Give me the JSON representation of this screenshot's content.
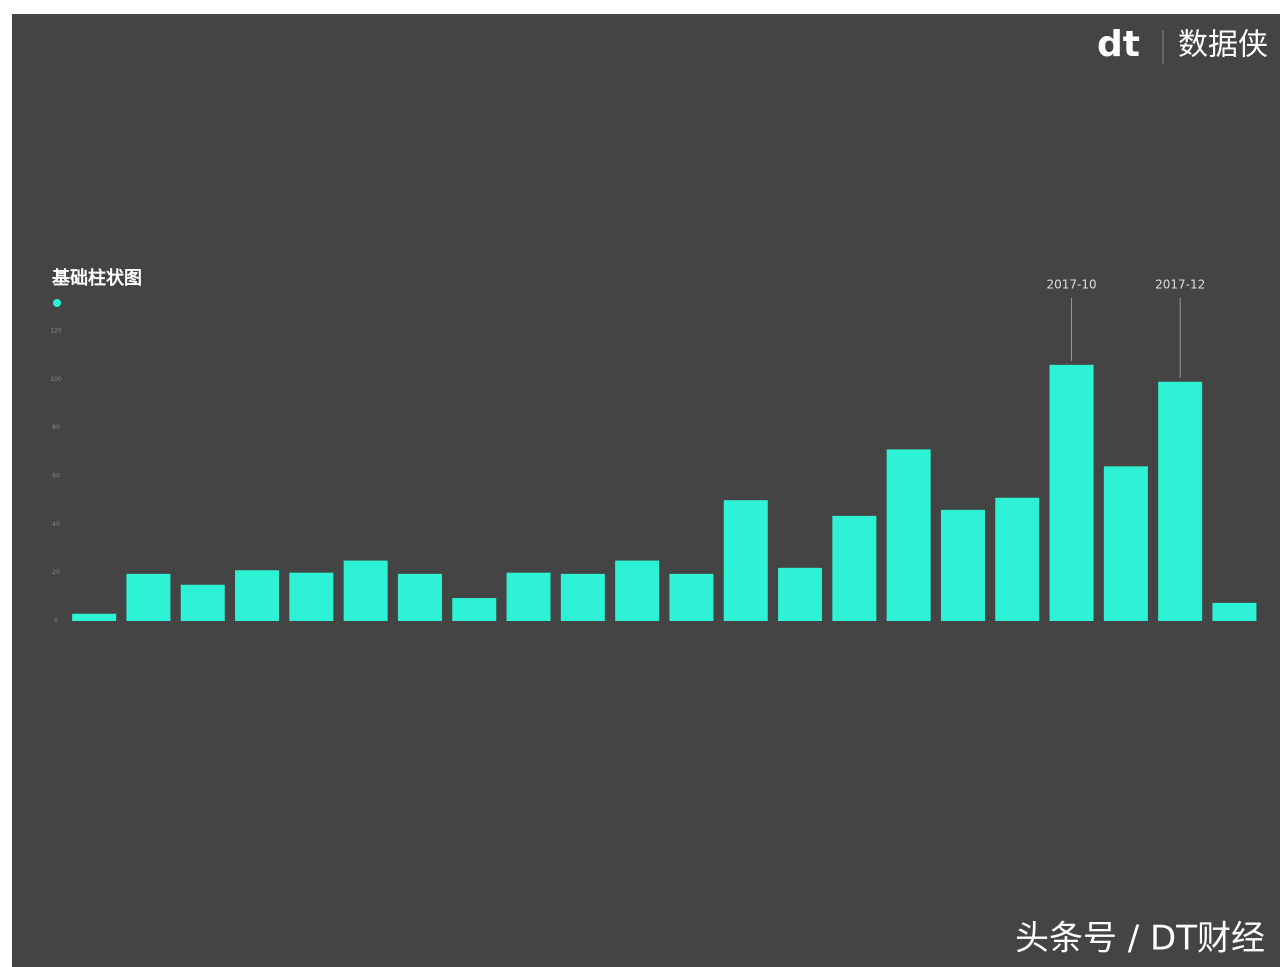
{
  "chart_data": {
    "type": "bar",
    "title": "基础柱状图",
    "color": "#2ef2d6",
    "categories": [
      null,
      null,
      null,
      null,
      null,
      null,
      null,
      null,
      null,
      null,
      null,
      null,
      null,
      null,
      null,
      null,
      null,
      null,
      "2017-10",
      null,
      "2017-12",
      null
    ],
    "values": [
      3,
      19.5,
      15,
      21,
      20,
      25,
      19.5,
      9.5,
      20,
      19.5,
      25,
      19.5,
      50,
      22,
      43.5,
      71,
      46,
      51,
      106,
      64,
      99,
      7.5
    ],
    "ylim": [
      0,
      120
    ],
    "yticks": [
      0,
      20,
      40,
      60,
      80,
      100,
      120
    ]
  },
  "logo": {
    "mark": "dt",
    "name": "数据侠"
  },
  "watermark": "头条号 / DT财经"
}
